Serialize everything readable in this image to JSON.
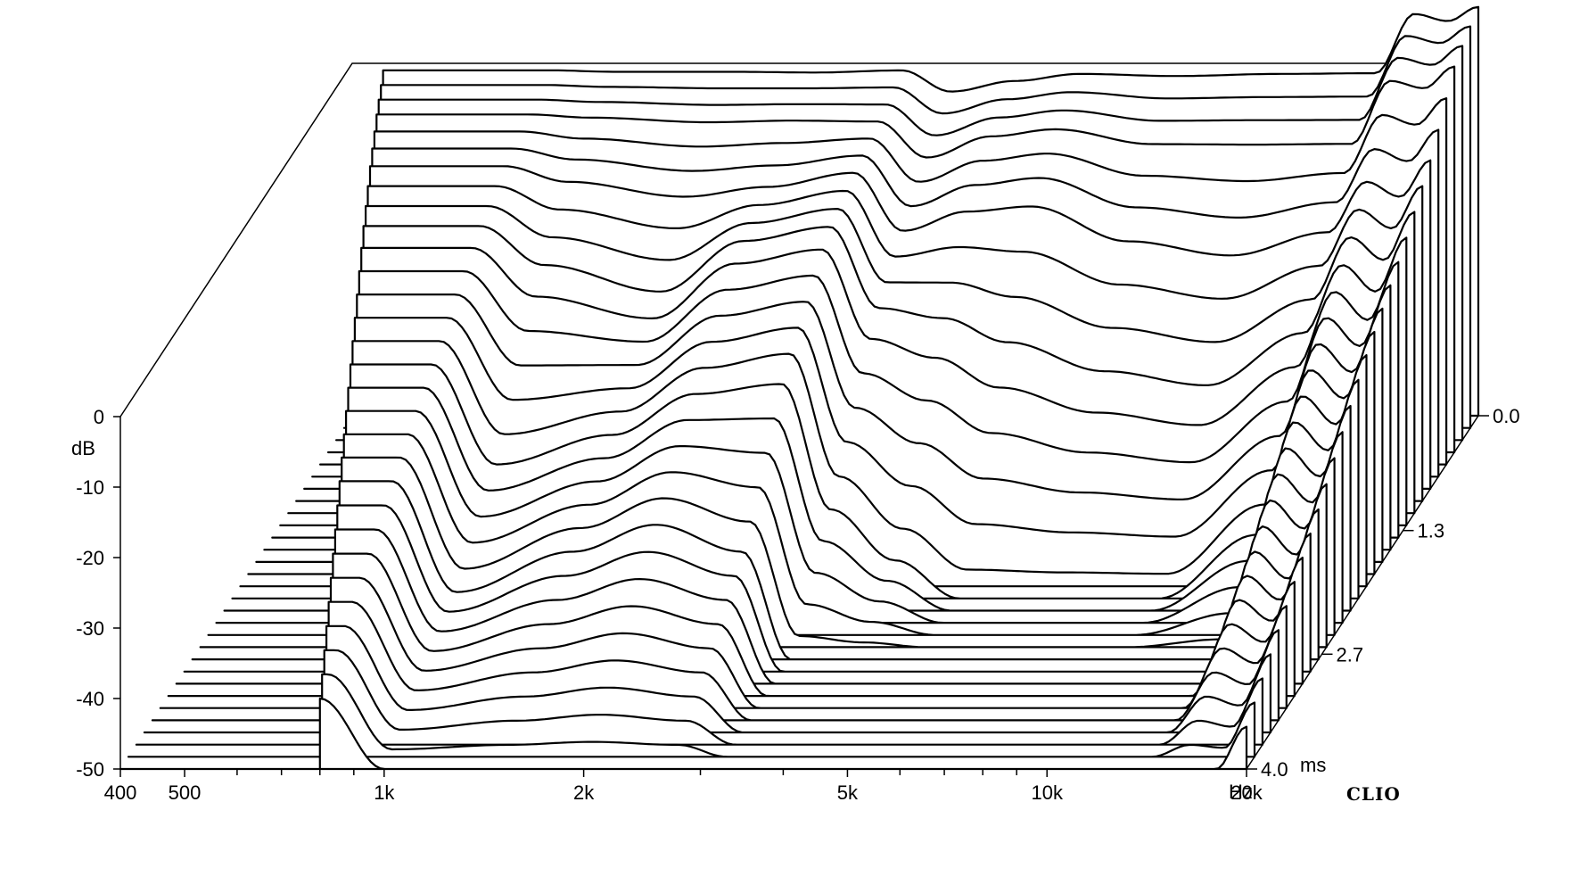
{
  "chart_data": {
    "type": "waterfall",
    "title": "",
    "xlabel": "",
    "ylabel": "dB",
    "zlabel": "ms",
    "brand": "CLIO",
    "x_unit": "Hz",
    "x_scale": "log",
    "xlim": [
      400,
      20000
    ],
    "ylim": [
      -50,
      0
    ],
    "zlim": [
      0.0,
      4.0
    ],
    "x_ticks": [
      {
        "value": 400,
        "label": "400"
      },
      {
        "value": 500,
        "label": "500"
      },
      {
        "value": 1000,
        "label": "1k"
      },
      {
        "value": 2000,
        "label": "2k"
      },
      {
        "value": 5000,
        "label": "5k"
      },
      {
        "value": 10000,
        "label": "10k"
      },
      {
        "value": 20000,
        "label": "20k"
      }
    ],
    "y_ticks": [
      {
        "value": 0,
        "label": "0"
      },
      {
        "value": -10,
        "label": "-10"
      },
      {
        "value": -20,
        "label": "-20"
      },
      {
        "value": -30,
        "label": "-30"
      },
      {
        "value": -40,
        "label": "-40"
      },
      {
        "value": -50,
        "label": "-50"
      }
    ],
    "z_ticks": [
      {
        "value": 0.0,
        "label": "0.0"
      },
      {
        "value": 1.3,
        "label": "1.3"
      },
      {
        "value": 2.7,
        "label": "2.7"
      },
      {
        "value": 4.0,
        "label": "4.0"
      }
    ],
    "slices": 30,
    "series": [
      {
        "name": "",
        "time_ms": 0.0,
        "x": [
          800,
          1000,
          1500,
          2000,
          2700,
          3200,
          4000,
          5000,
          7000,
          10000,
          14000,
          16000,
          18000,
          20000
        ],
        "db": [
          -1.0,
          -1.2,
          -1.2,
          -1.3,
          -1.0,
          -4.0,
          -2.5,
          -1.5,
          -1.8,
          -1.5,
          -1.4,
          7.0,
          6.0,
          8.0
        ]
      },
      {
        "name": "",
        "time_ms": 0.4,
        "x": [
          800,
          1000,
          1500,
          2000,
          2700,
          3200,
          4000,
          5000,
          7000,
          10000,
          14000,
          16000,
          18000,
          20000
        ],
        "db": [
          -2.0,
          -2.4,
          -3.0,
          -2.8,
          -3.0,
          -8.0,
          -5.0,
          -4.0,
          -6.0,
          -6.0,
          -6.0,
          3.0,
          2.0,
          5.0
        ]
      },
      {
        "name": "",
        "time_ms": 0.8,
        "x": [
          800,
          1000,
          1500,
          2000,
          2700,
          3200,
          4000,
          5000,
          7000,
          10000,
          14000,
          16000,
          18000,
          20000
        ],
        "db": [
          -4.0,
          -6.0,
          -8.0,
          -7.0,
          -5.0,
          -13.0,
          -10.0,
          -9.0,
          -14.0,
          -16.0,
          -13.0,
          -6.0,
          -8.0,
          -3.0
        ]
      },
      {
        "name": "",
        "time_ms": 1.3,
        "x": [
          800,
          1000,
          1500,
          2000,
          2700,
          3200,
          4000,
          5000,
          7000,
          10000,
          14000,
          16000,
          18000,
          20000
        ],
        "db": [
          -8.0,
          -14.0,
          -18.0,
          -10.0,
          -8.0,
          -20.0,
          -22.0,
          -26.0,
          -30.0,
          -32.0,
          -24.0,
          -14.0,
          -18.0,
          -10.0
        ]
      },
      {
        "name": "",
        "time_ms": 2.0,
        "x": [
          800,
          1000,
          1500,
          2000,
          2700,
          3200,
          4000,
          5000,
          7000,
          10000,
          14000,
          16000,
          18000,
          20000
        ],
        "db": [
          -16.0,
          -30.0,
          -26.0,
          -20.0,
          -18.0,
          -36.0,
          -44.0,
          -50.0,
          -50.0,
          -50.0,
          -40.0,
          -24.0,
          -28.0,
          -18.0
        ]
      },
      {
        "name": "",
        "time_ms": 2.7,
        "x": [
          800,
          1000,
          1500,
          2000,
          2700,
          3200,
          4000,
          5000,
          7000,
          10000,
          14000,
          16000,
          18000,
          20000
        ],
        "db": [
          -24.0,
          -40.0,
          -34.0,
          -30.0,
          -34.0,
          -50.0,
          -50.0,
          -50.0,
          -50.0,
          -50.0,
          -50.0,
          -34.0,
          -38.0,
          -28.0
        ]
      },
      {
        "name": "",
        "time_ms": 4.0,
        "x": [
          800,
          1000,
          1500,
          2000,
          2700,
          3200,
          4000,
          5000,
          7000,
          10000,
          14000,
          16000,
          18000,
          20000
        ],
        "db": [
          -40.0,
          -50.0,
          -50.0,
          -50.0,
          -50.0,
          -50.0,
          -50.0,
          -50.0,
          -50.0,
          -50.0,
          -50.0,
          -50.0,
          -50.0,
          -44.0
        ]
      }
    ]
  }
}
